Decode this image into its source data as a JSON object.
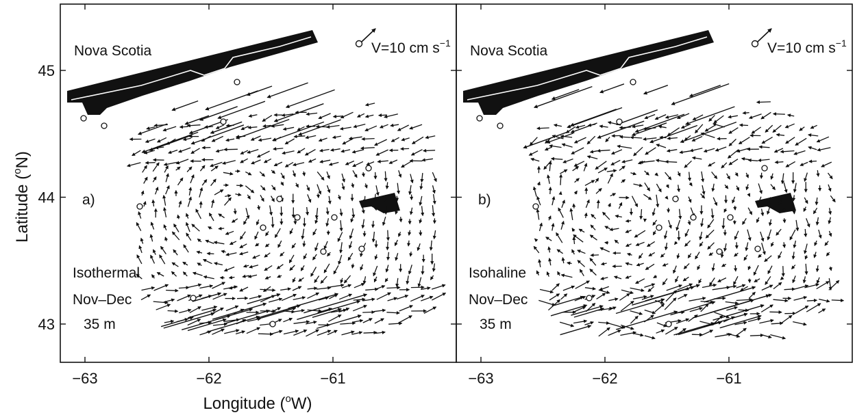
{
  "chart_data": {
    "type": "vector_field_map",
    "shared": {
      "xlabel": "Longitude (",
      "xlabel_sup": "o",
      "xlabel_end": "W)",
      "ylabel": "Latitude (",
      "ylabel_sup": "o",
      "ylabel_end": "N)",
      "x_ticks": [
        -63,
        -62,
        -61
      ],
      "y_ticks": [
        43,
        44,
        45
      ],
      "xlim": [
        -63.35,
        -60.0
      ],
      "ylim": [
        42.7,
        45.55
      ],
      "scale_text": "V=10 cm s",
      "scale_sup": "−1",
      "scale_speed_cm_s": 10
    },
    "panels": [
      {
        "id": "a",
        "panel_label": "a)",
        "region_label": "Nova Scotia",
        "lines": [
          "Isothermal",
          "Nov–Dec",
          "35 m"
        ],
        "seed": 7
      },
      {
        "id": "b",
        "panel_label": "b)",
        "region_label": "Nova Scotia",
        "lines": [
          "Isohaline",
          "Nov–Dec",
          "35 m"
        ],
        "seed": 13
      }
    ]
  }
}
